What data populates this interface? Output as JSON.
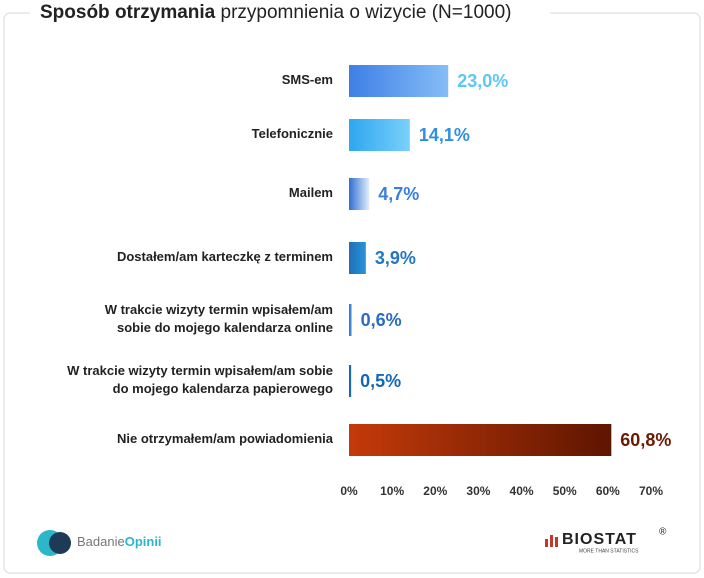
{
  "chart_data": {
    "type": "hbar",
    "title": {
      "bold": "Sposób otrzymania",
      "regular": "przypomnienia o wizycie (N=1000)"
    },
    "categories": [
      [
        "SMS-em"
      ],
      [
        "Telefonicznie"
      ],
      [
        "Mailem"
      ],
      [
        "Dostałem/am karteczkę z terminem"
      ],
      [
        "W trakcie wizyty termin wpisałem/am",
        "sobie do mojego kalendarza online"
      ],
      [
        "W trakcie wizyty termin wpisałem/am sobie",
        "do mojego kalendarza papierowego"
      ],
      [
        "Nie otrzymałem/am powiadomienia"
      ]
    ],
    "values": [
      23.0,
      14.1,
      4.7,
      3.9,
      0.6,
      0.5,
      60.8
    ],
    "value_labels": [
      "23,0%",
      "14,1%",
      "4,7%",
      "3,9%",
      "0,6%",
      "0,5%",
      "60,8%"
    ],
    "colors": [
      [
        "#3d7fe6",
        "#86bdf6"
      ],
      [
        "#2fa6ef",
        "#7ad0fb"
      ],
      [
        "#2f6fd2",
        "#e3eefb"
      ],
      [
        "#1f6fb8",
        "#2a93d8"
      ],
      [
        "#2d6fd0",
        "#5a9ae8"
      ],
      [
        "#0e5ea8",
        "#1f78c4"
      ],
      [
        "#c43a0a",
        "#5e1500"
      ]
    ],
    "label_colors": [
      "#5cc7f4",
      "#2f8fe3",
      "#3a7fdc",
      "#2276c6",
      "#2a6cc2",
      "#1667b3",
      "#6a1b02"
    ],
    "xlim": [
      0,
      70
    ],
    "xticks": [
      {
        "value": 0,
        "label": "0%"
      },
      {
        "value": 10,
        "label": "10%"
      },
      {
        "value": 20,
        "label": "20%"
      },
      {
        "value": 30,
        "label": "30%"
      },
      {
        "value": 40,
        "label": "40%"
      },
      {
        "value": 50,
        "label": "50%"
      },
      {
        "value": 60,
        "label": "60%"
      },
      {
        "value": 70,
        "label": "70%"
      }
    ]
  },
  "footer": {
    "left_logo": {
      "first": "Badanie",
      "second": "Opinii"
    },
    "right_logo": "BIOSTAT",
    "registered": "®",
    "tagline": "MORE THAN STATISTICS"
  }
}
